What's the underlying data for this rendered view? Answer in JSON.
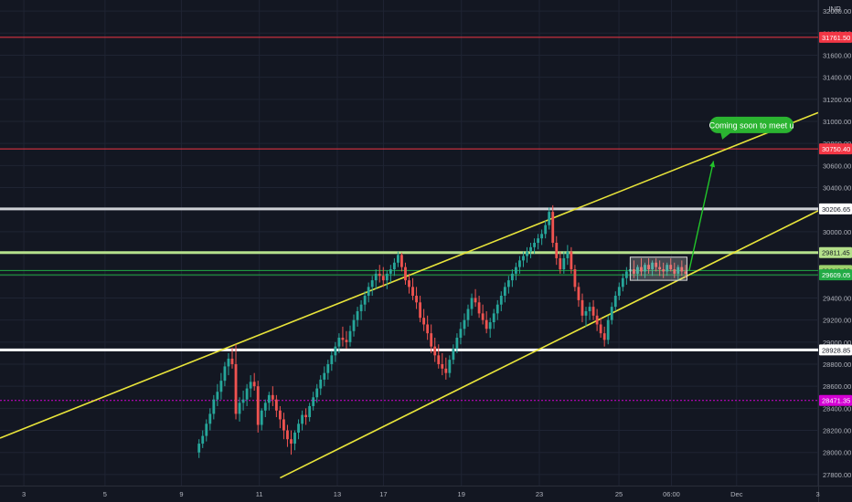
{
  "chart_data": {
    "type": "candlestick",
    "currency": "INR",
    "ylim": [
      27700,
      32100
    ],
    "price_axis_ticks": [
      27800,
      28000,
      28200,
      28400,
      28600,
      28800,
      29000,
      29200,
      29400,
      29600,
      29800,
      30000,
      30200,
      30400,
      30600,
      30800,
      31000,
      31200,
      31400,
      31600,
      31800,
      32000
    ],
    "price_axis_tick_labels": [
      "27800.00",
      "28000.00",
      "28200.00",
      "28400.00",
      "28600.00",
      "28800.00",
      "29000.00",
      "29200.00",
      "29400.00",
      "29600.00",
      "29800.00",
      "30000.00",
      "30200.00",
      "30400.00",
      "30600.00",
      "30800.00",
      "31000.00",
      "31200.00",
      "31400.00",
      "31600.00",
      "31800.00",
      "32000.00"
    ],
    "x_range": [
      0,
      111
    ],
    "x_axis_ticks": [
      {
        "label": "3",
        "x": 1.5
      },
      {
        "label": "5",
        "x": 6.6
      },
      {
        "label": "9",
        "x": 11.4
      },
      {
        "label": "11",
        "x": 16.3
      },
      {
        "label": "13",
        "x": 21.2
      },
      {
        "label": "17",
        "x": 24.1
      },
      {
        "label": "19",
        "x": 29.0
      },
      {
        "label": "23",
        "x": 33.9
      },
      {
        "label": "25",
        "x": 38.9
      },
      {
        "label": "06:00",
        "x": 42.2
      },
      {
        "label": "Dec",
        "x": 46.3
      },
      {
        "label": "3",
        "x": 51.4
      }
    ],
    "horizontal_levels": [
      {
        "value": 31761.5,
        "label": "31761.50",
        "color": "#f23645",
        "style": "solid",
        "label_bg": "#f23645",
        "label_color": "#ffffff"
      },
      {
        "value": 30750.4,
        "label": "30750.40",
        "color": "#f23645",
        "style": "solid",
        "label_bg": "#f23645",
        "label_color": "#ffffff"
      },
      {
        "value": 30206.65,
        "label": "30206.65",
        "color": "#cfd1d6",
        "style": "thick",
        "label_bg": "#ffffff",
        "label_color": "#131722"
      },
      {
        "value": 29811.45,
        "label": "29811.45",
        "color": "#b5e08b",
        "style": "thick",
        "label_bg": "#b5e08b",
        "label_color": "#131722"
      },
      {
        "value": 29649.0,
        "label": "29649.00",
        "color": "#22ab45",
        "style": "solid",
        "label_bg": "#9dd26c",
        "label_color": "#131722"
      },
      {
        "value": 29609.05,
        "label": "29609.05",
        "color": "#22ab45",
        "style": "solid",
        "label_bg": "#22ab45",
        "label_color": "#ffffff"
      },
      {
        "value": 28928.85,
        "label": "28928.85",
        "color": "#ffffff",
        "style": "thick",
        "label_bg": "#ffffff",
        "label_color": "#131722"
      },
      {
        "value": 28471.35,
        "label": "28471.35",
        "color": "#d400d4",
        "style": "dotted",
        "label_bg": "#d400d4",
        "label_color": "#ffffff"
      }
    ],
    "channel_lines": [
      {
        "name": "upper",
        "color": "#e8e43a",
        "x": [
          0.0,
          111.0
        ],
        "y": [
          28130,
          31080
        ]
      },
      {
        "name": "lower",
        "color": "#e8e43a",
        "x": [
          38.0,
          111.0
        ],
        "y": [
          27770,
          30190
        ]
      }
    ],
    "projection_arrow": {
      "color": "#22c52a",
      "x": [
        93.5,
        96.8
      ],
      "y": [
        29650,
        30640
      ]
    },
    "callout": {
      "text": "Coming soon to meet u",
      "color": "#2bb431",
      "text_color": "#ffffff",
      "x": 97.5,
      "y": 30860
    },
    "range_box": {
      "x": [
        85.5,
        93.2
      ],
      "y": [
        29560,
        29770
      ],
      "color": "#d9d9d9"
    },
    "ohlc_columns": [
      "x",
      "open",
      "high",
      "low",
      "close"
    ],
    "candles": [
      [
        27.0,
        28000,
        28120,
        27950,
        28080
      ],
      [
        27.5,
        28080,
        28200,
        28040,
        28150
      ],
      [
        28.0,
        28150,
        28300,
        28100,
        28260
      ],
      [
        28.5,
        28260,
        28400,
        28200,
        28350
      ],
      [
        29.0,
        28350,
        28520,
        28300,
        28480
      ],
      [
        29.5,
        28480,
        28620,
        28420,
        28550
      ],
      [
        30.0,
        28550,
        28720,
        28480,
        28650
      ],
      [
        30.5,
        28650,
        28820,
        28600,
        28780
      ],
      [
        31.0,
        28780,
        28900,
        28700,
        28850
      ],
      [
        31.5,
        28850,
        28950,
        28760,
        28800
      ],
      [
        32.0,
        28800,
        28980,
        28300,
        28350
      ],
      [
        32.5,
        28350,
        28500,
        28280,
        28450
      ],
      [
        33.0,
        28450,
        28560,
        28380,
        28480
      ],
      [
        33.5,
        28480,
        28620,
        28420,
        28580
      ],
      [
        34.0,
        28580,
        28700,
        28500,
        28640
      ],
      [
        34.5,
        28640,
        28720,
        28560,
        28600
      ],
      [
        35.0,
        28600,
        28650,
        28180,
        28250
      ],
      [
        35.5,
        28250,
        28400,
        28200,
        28380
      ],
      [
        36.0,
        28380,
        28480,
        28320,
        28450
      ],
      [
        36.5,
        28450,
        28550,
        28380,
        28520
      ],
      [
        37.0,
        28520,
        28600,
        28420,
        28480
      ],
      [
        37.5,
        28480,
        28520,
        28320,
        28380
      ],
      [
        38.0,
        28380,
        28420,
        28220,
        28300
      ],
      [
        38.5,
        28300,
        28360,
        28120,
        28200
      ],
      [
        39.0,
        28200,
        28250,
        28050,
        28120
      ],
      [
        39.5,
        28120,
        28200,
        27980,
        28080
      ],
      [
        40.0,
        28080,
        28200,
        28020,
        28180
      ],
      [
        40.5,
        28180,
        28300,
        28120,
        28260
      ],
      [
        41.0,
        28260,
        28380,
        28200,
        28340
      ],
      [
        41.5,
        28340,
        28400,
        28250,
        28320
      ],
      [
        42.0,
        28320,
        28450,
        28280,
        28420
      ],
      [
        42.5,
        28420,
        28550,
        28380,
        28500
      ],
      [
        43.0,
        28500,
        28620,
        28450,
        28580
      ],
      [
        43.5,
        28580,
        28700,
        28520,
        28660
      ],
      [
        44.0,
        28660,
        28780,
        28600,
        28720
      ],
      [
        44.5,
        28720,
        28840,
        28660,
        28800
      ],
      [
        45.0,
        28800,
        28920,
        28740,
        28880
      ],
      [
        45.5,
        28880,
        29000,
        28820,
        28960
      ],
      [
        46.0,
        28960,
        29080,
        28900,
        29040
      ],
      [
        46.5,
        29040,
        29140,
        28960,
        29020
      ],
      [
        47.0,
        29020,
        29100,
        28940,
        29000
      ],
      [
        47.5,
        29000,
        29150,
        28960,
        29100
      ],
      [
        48.0,
        29100,
        29250,
        29050,
        29200
      ],
      [
        48.5,
        29200,
        29320,
        29140,
        29280
      ],
      [
        49.0,
        29280,
        29380,
        29200,
        29340
      ],
      [
        49.5,
        29340,
        29460,
        29280,
        29420
      ],
      [
        50.0,
        29420,
        29540,
        29360,
        29500
      ],
      [
        50.5,
        29500,
        29600,
        29420,
        29560
      ],
      [
        51.0,
        29560,
        29660,
        29480,
        29620
      ],
      [
        51.5,
        29620,
        29700,
        29540,
        29600
      ],
      [
        52.0,
        29600,
        29680,
        29500,
        29560
      ],
      [
        52.5,
        29560,
        29650,
        29480,
        29620
      ],
      [
        53.0,
        29620,
        29700,
        29540,
        29660
      ],
      [
        53.5,
        29660,
        29760,
        29600,
        29720
      ],
      [
        54.0,
        29720,
        29820,
        29680,
        29790
      ],
      [
        54.5,
        29790,
        29810,
        29640,
        29680
      ],
      [
        55.0,
        29680,
        29720,
        29520,
        29560
      ],
      [
        55.5,
        29560,
        29620,
        29440,
        29500
      ],
      [
        56.0,
        29500,
        29580,
        29380,
        29420
      ],
      [
        56.5,
        29420,
        29500,
        29300,
        29360
      ],
      [
        57.0,
        29360,
        29420,
        29180,
        29220
      ],
      [
        57.5,
        29220,
        29300,
        29100,
        29160
      ],
      [
        58.0,
        29160,
        29240,
        29020,
        29080
      ],
      [
        58.5,
        29080,
        29160,
        28900,
        28960
      ],
      [
        59.0,
        28960,
        29040,
        28820,
        28880
      ],
      [
        59.5,
        28880,
        28980,
        28760,
        28800
      ],
      [
        60.0,
        28800,
        28900,
        28700,
        28760
      ],
      [
        60.5,
        28760,
        28860,
        28660,
        28720
      ],
      [
        61.0,
        28720,
        28880,
        28680,
        28840
      ],
      [
        61.5,
        28840,
        28980,
        28800,
        28940
      ],
      [
        62.0,
        28940,
        29080,
        28900,
        29040
      ],
      [
        62.5,
        29040,
        29180,
        28980,
        29120
      ],
      [
        63.0,
        29120,
        29260,
        29060,
        29200
      ],
      [
        63.5,
        29200,
        29340,
        29140,
        29300
      ],
      [
        64.0,
        29300,
        29440,
        29240,
        29400
      ],
      [
        64.5,
        29400,
        29480,
        29320,
        29360
      ],
      [
        65.0,
        29360,
        29420,
        29220,
        29260
      ],
      [
        65.5,
        29260,
        29340,
        29160,
        29200
      ],
      [
        66.0,
        29200,
        29280,
        29080,
        29120
      ],
      [
        66.5,
        29120,
        29220,
        29040,
        29180
      ],
      [
        67.0,
        29180,
        29300,
        29120,
        29260
      ],
      [
        67.5,
        29260,
        29380,
        29200,
        29340
      ],
      [
        68.0,
        29340,
        29460,
        29280,
        29420
      ],
      [
        68.5,
        29420,
        29540,
        29360,
        29500
      ],
      [
        69.0,
        29500,
        29600,
        29440,
        29560
      ],
      [
        69.5,
        29560,
        29660,
        29500,
        29620
      ],
      [
        70.0,
        29620,
        29720,
        29560,
        29680
      ],
      [
        70.5,
        29680,
        29780,
        29620,
        29740
      ],
      [
        71.0,
        29740,
        29820,
        29680,
        29780
      ],
      [
        71.5,
        29780,
        29860,
        29720,
        29820
      ],
      [
        72.0,
        29820,
        29900,
        29760,
        29860
      ],
      [
        72.5,
        29860,
        29940,
        29800,
        29900
      ],
      [
        73.0,
        29900,
        29980,
        29840,
        29940
      ],
      [
        73.5,
        29940,
        30020,
        29880,
        29980
      ],
      [
        74.0,
        29980,
        30100,
        29940,
        30060
      ],
      [
        74.5,
        30060,
        30220,
        30020,
        30180
      ],
      [
        75.0,
        30180,
        30240,
        29860,
        29900
      ],
      [
        75.5,
        29900,
        29960,
        29700,
        29760
      ],
      [
        76.0,
        29760,
        29820,
        29620,
        29660
      ],
      [
        76.5,
        29660,
        29820,
        29620,
        29760
      ],
      [
        77.0,
        29760,
        29880,
        29700,
        29820
      ],
      [
        77.5,
        29820,
        29860,
        29620,
        29660
      ],
      [
        78.0,
        29660,
        29700,
        29460,
        29500
      ],
      [
        78.5,
        29500,
        29540,
        29320,
        29380
      ],
      [
        79.0,
        29380,
        29440,
        29180,
        29240
      ],
      [
        79.5,
        29240,
        29320,
        29140,
        29280
      ],
      [
        80.0,
        29280,
        29360,
        29200,
        29320
      ],
      [
        80.5,
        29320,
        29380,
        29200,
        29240
      ],
      [
        81.0,
        29240,
        29300,
        29100,
        29160
      ],
      [
        81.5,
        29160,
        29220,
        29040,
        29080
      ],
      [
        82.0,
        29080,
        29140,
        28960,
        29020
      ],
      [
        82.5,
        29020,
        29240,
        28980,
        29200
      ],
      [
        83.0,
        29200,
        29360,
        29160,
        29320
      ],
      [
        83.5,
        29320,
        29460,
        29280,
        29420
      ],
      [
        84.0,
        29420,
        29540,
        29380,
        29500
      ],
      [
        84.5,
        29500,
        29620,
        29460,
        29580
      ],
      [
        85.0,
        29580,
        29680,
        29520,
        29640
      ],
      [
        85.5,
        29640,
        29720,
        29580,
        29660
      ],
      [
        86.0,
        29660,
        29740,
        29580,
        29620
      ],
      [
        86.5,
        29620,
        29700,
        29560,
        29680
      ],
      [
        87.0,
        29680,
        29760,
        29600,
        29640
      ],
      [
        87.5,
        29640,
        29720,
        29580,
        29700
      ],
      [
        88.0,
        29700,
        29760,
        29620,
        29660
      ],
      [
        88.5,
        29660,
        29740,
        29600,
        29720
      ],
      [
        89.0,
        29720,
        29760,
        29640,
        29680
      ],
      [
        89.5,
        29680,
        29740,
        29600,
        29660
      ],
      [
        90.0,
        29660,
        29720,
        29580,
        29640
      ],
      [
        90.5,
        29640,
        29720,
        29600,
        29700
      ],
      [
        91.0,
        29700,
        29760,
        29640,
        29660
      ],
      [
        91.5,
        29660,
        29720,
        29580,
        29620
      ],
      [
        92.0,
        29620,
        29700,
        29560,
        29680
      ],
      [
        92.5,
        29680,
        29740,
        29600,
        29640
      ],
      [
        93.0,
        29640,
        29700,
        29580,
        29620
      ]
    ]
  }
}
